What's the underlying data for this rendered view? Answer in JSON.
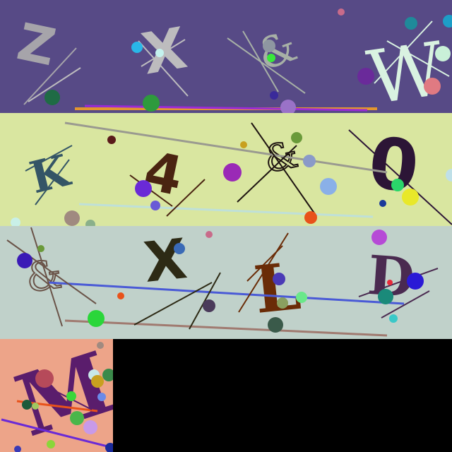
{
  "background": "#000000",
  "panels": [
    {
      "name": "captcha-panel-1",
      "background": "#574a86",
      "glyphs": [
        {
          "char": "Z",
          "color": "#a6a4aa"
        },
        {
          "char": "X",
          "color": "#bdbcbe"
        },
        {
          "char": "&",
          "color": "#a7b0a6"
        },
        {
          "char": "W",
          "color": "#d9f2e1"
        }
      ]
    },
    {
      "name": "captcha-panel-2",
      "background": "#d9e6a0",
      "glyphs": [
        {
          "char": "K",
          "color": "#345566"
        },
        {
          "char": "4",
          "color": "#4a2411"
        },
        {
          "char": "&",
          "color": "#1e1411"
        },
        {
          "char": "0",
          "color": "#2c1536"
        }
      ]
    },
    {
      "name": "captcha-panel-3",
      "background": "#c0d1ca",
      "glyphs": [
        {
          "char": "&",
          "color": "#6a5348"
        },
        {
          "char": "X",
          "color": "#2d2a15"
        },
        {
          "char": "L",
          "color": "#6a2c07"
        },
        {
          "char": "D",
          "color": "#4a2a50"
        }
      ]
    },
    {
      "name": "captcha-panel-4",
      "background": "#eda489",
      "glyphs": [
        {
          "char": "M",
          "color": "#5a1d6c"
        }
      ]
    }
  ]
}
